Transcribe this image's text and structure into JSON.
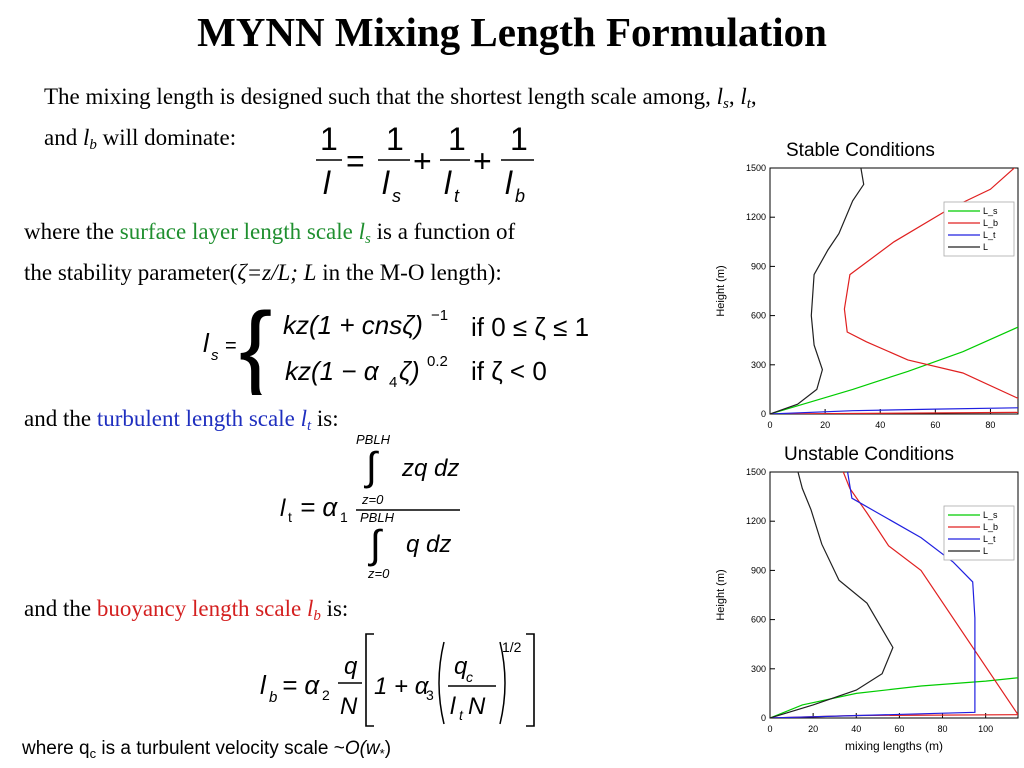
{
  "slide": {
    "title": "MYNN Mixing Length Formulation",
    "intro_line1": "The mixing length is designed such that the shortest length scale among,",
    "intro_ls": "l",
    "intro_ls_sub": "s",
    "intro_lt": "l",
    "intro_lt_sub": "t",
    "intro_and": "and",
    "intro_lb": "l",
    "intro_lb_sub": "b",
    "intro_end": "will dominate:",
    "surface_pre": "where the",
    "surface_term": "surface layer length scale",
    "surface_sym": "l",
    "surface_sym_sub": "s",
    "surface_post": "is a function of",
    "surface_line2_a": "the stability parameter(",
    "surface_line2_zeta": "ζ=z/L; L",
    "surface_line2_b": "in the M-O length):",
    "turb_pre": "and the",
    "turb_term": "turbulent length scale",
    "turb_sym": "l",
    "turb_sym_sub": "t",
    "turb_post": "is:",
    "buoy_pre": "and the",
    "buoy_term": "buoyancy length scale",
    "buoy_sym": "l",
    "buoy_sym_sub": "b",
    "buoy_post": "is:",
    "footer": "where q",
    "footer_sub": "c",
    "footer_rest": " is a turbulent velocity scale ~",
    "footer_O": "O",
    "footer_w": "(w",
    "footer_wsub": "*",
    "footer_close": ")"
  },
  "equations": {
    "eq1_one": "1",
    "eq1_l": "l",
    "eq1_eq": "=",
    "eq1_plus": "+",
    "eq1_ls": "l",
    "eq1_ls_sub": "s",
    "eq1_lt": "l",
    "eq1_lt_sub": "t",
    "eq1_lb": "l",
    "eq1_lb_sub": "b",
    "ls_lhs": "l",
    "ls_lhs_sub": "s",
    "ls_eq": "=",
    "ls_case1": "kz(1 + cnsζ)",
    "ls_case1_exp": "−1",
    "ls_case1_cond": "if  0 ≤ ζ ≤ 1",
    "ls_case2": "kz(1 − α",
    "ls_case2_sub": "4",
    "ls_case2_b": "ζ)",
    "ls_case2_exp": "0.2",
    "ls_case2_cond": "if  ζ < 0",
    "lt_lhs": "l",
    "lt_lhs_sub": "t",
    "lt_eq": "= α",
    "lt_alpha_sub": "1",
    "lt_num": "zq dz",
    "lt_den": "q dz",
    "lt_upper": "PBLH",
    "lt_lower": "z=0",
    "lb_lhs": "l",
    "lb_lhs_sub": "b",
    "lb_eq": "= α",
    "lb_alpha_sub": "2",
    "lb_q": "q",
    "lb_N": "N",
    "lb_one_plus": "1 + α",
    "lb_alpha3_sub": "3",
    "lb_qc": "q",
    "lb_qc_sub": "c",
    "lb_ltN": "l",
    "lb_ltN_sub": "t",
    "lb_ltN_N": "N",
    "lb_exp": "1/2"
  },
  "chart_data": [
    {
      "type": "line",
      "title": "Stable Conditions",
      "xlabel": "",
      "ylabel": "Height (m)",
      "xlim": [
        0,
        90
      ],
      "ylim": [
        0,
        1500
      ],
      "xticks": [
        0,
        20,
        40,
        60,
        80
      ],
      "yticks": [
        0,
        300,
        600,
        900,
        1200,
        1500
      ],
      "legend": "top-right",
      "series": [
        {
          "name": "L_s",
          "color": "#00cc00",
          "points": [
            [
              0,
              0
            ],
            [
              10,
              50
            ],
            [
              30,
              150
            ],
            [
              50,
              260
            ],
            [
              70,
              380
            ],
            [
              90,
              530
            ]
          ]
        },
        {
          "name": "L_b",
          "color": "#e02020",
          "points": [
            [
              0,
              0
            ],
            [
              90,
              10
            ],
            [
              100,
              18
            ],
            [
              70,
              250
            ],
            [
              50,
              330
            ],
            [
              35,
              440
            ],
            [
              28,
              500
            ],
            [
              27,
              640
            ],
            [
              29,
              850
            ],
            [
              45,
              1050
            ],
            [
              65,
              1250
            ],
            [
              80,
              1370
            ],
            [
              90,
              1520
            ]
          ]
        },
        {
          "name": "L_t",
          "color": "#2020e0",
          "points": [
            [
              0,
              0
            ],
            [
              30,
              20
            ],
            [
              60,
              30
            ],
            [
              90,
              38
            ]
          ]
        },
        {
          "name": "L",
          "color": "#202020",
          "points": [
            [
              0,
              0
            ],
            [
              10,
              60
            ],
            [
              17,
              150
            ],
            [
              19,
              270
            ],
            [
              16,
              420
            ],
            [
              15,
              600
            ],
            [
              16,
              850
            ],
            [
              21,
              1000
            ],
            [
              25,
              1100
            ],
            [
              30,
              1300
            ],
            [
              34,
              1400
            ],
            [
              33,
              1500
            ]
          ]
        }
      ]
    },
    {
      "type": "line",
      "title": "Unstable Conditions",
      "xlabel": "mixing lengths (m)",
      "ylabel": "Height (m)",
      "xlim": [
        0,
        115
      ],
      "ylim": [
        0,
        1500
      ],
      "xticks": [
        0,
        20,
        40,
        60,
        80,
        100
      ],
      "yticks": [
        0,
        300,
        600,
        900,
        1200,
        1500
      ],
      "legend": "top-right",
      "series": [
        {
          "name": "L_s",
          "color": "#00cc00",
          "points": [
            [
              0,
              0
            ],
            [
              15,
              80
            ],
            [
              40,
              150
            ],
            [
              70,
              195
            ],
            [
              100,
              225
            ],
            [
              115,
              245
            ]
          ]
        },
        {
          "name": "L_b",
          "color": "#e02020",
          "points": [
            [
              0,
              0
            ],
            [
              40,
              15
            ],
            [
              115,
              20
            ],
            [
              70,
              900
            ],
            [
              55,
              1050
            ],
            [
              45,
              1250
            ],
            [
              37,
              1400
            ],
            [
              34,
              1500
            ]
          ]
        },
        {
          "name": "L_t",
          "color": "#2020e0",
          "points": [
            [
              0,
              0
            ],
            [
              95,
              35
            ],
            [
              95,
              610
            ],
            [
              94,
              830
            ],
            [
              85,
              950
            ],
            [
              70,
              1100
            ],
            [
              50,
              1250
            ],
            [
              38,
              1340
            ],
            [
              36,
              1500
            ]
          ]
        },
        {
          "name": "L",
          "color": "#202020",
          "points": [
            [
              0,
              0
            ],
            [
              20,
              80
            ],
            [
              40,
              170
            ],
            [
              52,
              270
            ],
            [
              57,
              430
            ],
            [
              45,
              700
            ],
            [
              32,
              840
            ],
            [
              24,
              1060
            ],
            [
              19,
              1270
            ],
            [
              15,
              1400
            ],
            [
              13,
              1500
            ]
          ]
        }
      ]
    }
  ]
}
